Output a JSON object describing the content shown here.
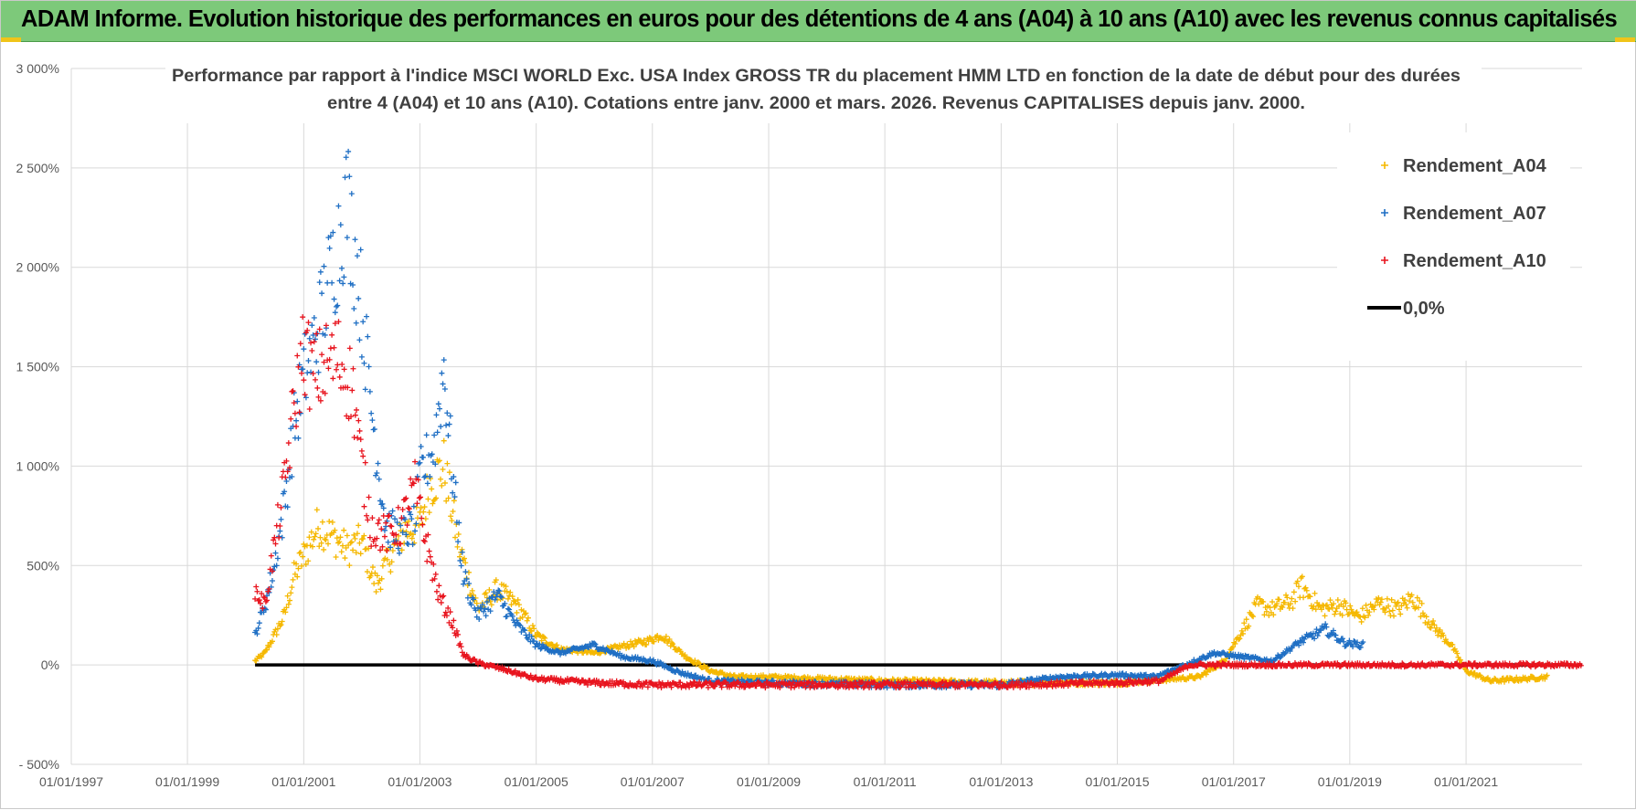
{
  "header": {
    "title": "ADAM Informe. Evolution historique des performances en euros pour des détentions de 4 ans (A04) à 10 ans (A10) avec les revenus connus capitalisés"
  },
  "colors": {
    "header_bg": "#7dc97a",
    "accent": "#f0c419",
    "A04": "#f5b800",
    "A07": "#1f6fc4",
    "A10": "#e8141e",
    "zero": "#000000"
  },
  "chart_data": {
    "type": "scatter",
    "title_line1": "Performance par rapport à l'indice MSCI WORLD Exc. USA Index GROSS TR  du placement HMM LTD en fonction de la date de début pour des durées",
    "title_line2": "entre 4 (A04) et 10 ans (A10). Cotations entre janv. 2000 et mars. 2026. Revenus CAPITALISES depuis janv. 2000.",
    "xlabel": "",
    "ylabel": "",
    "x_range": [
      "1997-01-01",
      "2022-12-31"
    ],
    "y_range": [
      -500,
      3000
    ],
    "y_ticks": [
      3000,
      2500,
      2000,
      1500,
      1000,
      500,
      0,
      -500
    ],
    "y_tick_labels": [
      "3 000%",
      "2 500%",
      "2 000%",
      "1 500%",
      "1 000%",
      "500%",
      "0%",
      "- 500%"
    ],
    "x_tick_labels": [
      "01/01/1997",
      "01/01/1999",
      "01/01/2001",
      "01/01/2003",
      "01/01/2005",
      "01/01/2007",
      "01/01/2009",
      "01/01/2011",
      "01/01/2013",
      "01/01/2015",
      "01/01/2017",
      "01/01/2019",
      "01/01/2021"
    ],
    "grid": true,
    "legend_position": "top-right",
    "series": [
      {
        "name": "Rendement_A04",
        "color": "#f5b800",
        "marker": "+",
        "x": [
          "2000-03-01",
          "2000-05-01",
          "2000-07-01",
          "2000-09-01",
          "2000-11-01",
          "2001-01-01",
          "2001-04-01",
          "2001-07-01",
          "2001-10-01",
          "2002-01-01",
          "2002-04-01",
          "2002-07-01",
          "2002-10-01",
          "2003-01-01",
          "2003-03-01",
          "2003-06-01",
          "2003-09-01",
          "2004-01-01",
          "2004-05-01",
          "2004-09-01",
          "2005-01-01",
          "2005-06-01",
          "2006-01-01",
          "2006-06-01",
          "2006-12-01",
          "2007-03-01",
          "2007-08-01",
          "2008-01-01",
          "2008-06-01",
          "2009-01-01",
          "2010-01-01",
          "2011-01-01",
          "2012-01-01",
          "2013-01-01",
          "2014-01-01",
          "2015-01-01",
          "2016-01-01",
          "2016-06-01",
          "2016-11-01",
          "2017-03-01",
          "2017-06-01",
          "2017-09-01",
          "2018-01-01",
          "2018-03-01",
          "2018-07-01",
          "2018-11-01",
          "2019-03-01",
          "2019-07-01",
          "2019-11-01",
          "2020-02-01",
          "2020-06-01",
          "2020-10-01",
          "2021-01-01",
          "2021-06-01",
          "2022-01-01",
          "2022-06-01"
        ],
        "y": [
          20,
          60,
          150,
          250,
          450,
          550,
          700,
          650,
          580,
          620,
          400,
          550,
          680,
          700,
          900,
          1000,
          600,
          280,
          380,
          300,
          150,
          80,
          60,
          90,
          120,
          150,
          40,
          -30,
          -60,
          -60,
          -70,
          -80,
          -85,
          -90,
          -90,
          -90,
          -70,
          -60,
          20,
          180,
          300,
          280,
          320,
          400,
          280,
          300,
          240,
          310,
          280,
          340,
          200,
          100,
          -30,
          -80,
          -70,
          -60
        ]
      },
      {
        "name": "Rendement_A07",
        "color": "#1f6fc4",
        "marker": "+",
        "x": [
          "2000-03-01",
          "2000-05-01",
          "2000-07-01",
          "2000-09-01",
          "2000-11-01",
          "2001-01-01",
          "2001-03-01",
          "2001-05-01",
          "2001-08-01",
          "2001-10-01",
          "2002-01-01",
          "2002-03-01",
          "2002-06-01",
          "2002-09-01",
          "2002-12-01",
          "2003-01-01",
          "2003-04-01",
          "2003-06-01",
          "2003-08-01",
          "2003-10-01",
          "2004-01-01",
          "2004-05-01",
          "2004-09-01",
          "2005-01-01",
          "2005-06-01",
          "2006-01-01",
          "2006-07-01",
          "2007-01-01",
          "2007-07-01",
          "2008-01-01",
          "2009-01-01",
          "2010-01-01",
          "2011-01-01",
          "2012-01-01",
          "2013-01-01",
          "2014-01-01",
          "2015-01-01",
          "2015-09-01",
          "2016-03-01",
          "2016-09-01",
          "2017-03-01",
          "2017-09-01",
          "2018-03-01",
          "2018-08-01",
          "2018-12-01",
          "2019-04-01"
        ],
        "y": [
          150,
          300,
          500,
          800,
          1200,
          1450,
          1600,
          1800,
          2100,
          2350,
          1800,
          1300,
          700,
          650,
          700,
          950,
          1100,
          1500,
          900,
          450,
          250,
          350,
          200,
          100,
          60,
          100,
          40,
          20,
          -40,
          -80,
          -90,
          -95,
          -100,
          -100,
          -100,
          -60,
          -50,
          -60,
          0,
          60,
          40,
          20,
          120,
          180,
          110,
          100
        ]
      },
      {
        "name": "Rendement_A10",
        "color": "#e8141e",
        "marker": "+",
        "x": [
          "2000-03-01",
          "2000-05-01",
          "2000-07-01",
          "2000-09-01",
          "2000-11-01",
          "2001-01-01",
          "2001-03-01",
          "2001-05-01",
          "2001-08-01",
          "2001-11-01",
          "2002-01-01",
          "2002-03-01",
          "2002-06-01",
          "2002-09-01",
          "2002-12-01",
          "2003-02-01",
          "2003-05-01",
          "2003-08-01",
          "2003-10-01",
          "2004-01-01",
          "2004-06-01",
          "2005-01-01",
          "2006-01-01",
          "2007-01-01",
          "2008-01-01",
          "2009-01-01",
          "2010-01-01",
          "2011-01-01",
          "2012-01-01",
          "2013-01-01",
          "2014-01-01",
          "2015-01-01",
          "2015-10-01",
          "2016-04-01",
          "2017-01-01",
          "2018-01-01",
          "2019-01-01",
          "2020-01-01",
          "2021-01-01",
          "2022-01-01",
          "2022-12-31"
        ],
        "y": [
          380,
          300,
          600,
          900,
          1300,
          1600,
          1450,
          1500,
          1550,
          1400,
          1000,
          700,
          650,
          700,
          900,
          650,
          350,
          200,
          50,
          10,
          -20,
          -70,
          -90,
          -100,
          -100,
          -100,
          -100,
          -100,
          -100,
          -100,
          -95,
          -90,
          -80,
          0,
          0,
          0,
          0,
          0,
          0,
          0,
          0
        ]
      },
      {
        "name": "0,0%",
        "color": "#000000",
        "marker": "line",
        "x": [
          "2000-03-01",
          "2022-12-31"
        ],
        "y": [
          0,
          0
        ]
      }
    ]
  }
}
